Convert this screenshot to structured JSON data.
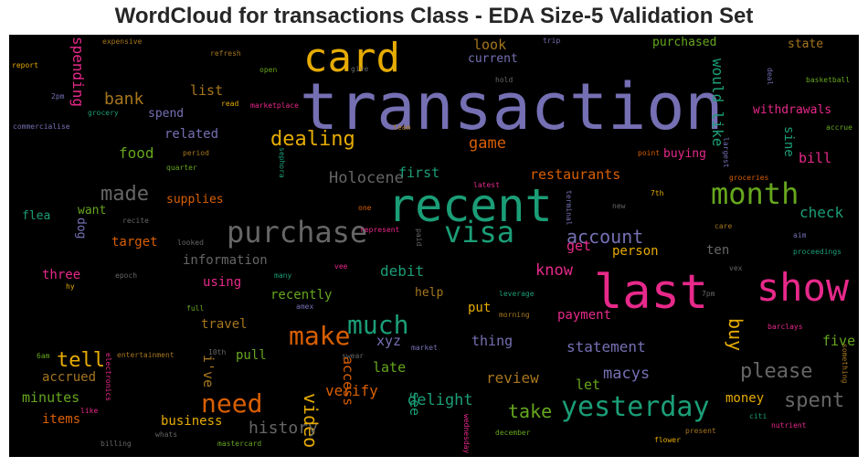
{
  "chart_data": {
    "type": "wordcloud",
    "title": "WordCloud for transactions Class - EDA Size-5 Validation Set",
    "background": "#000000",
    "words": [
      {
        "text": "transaction",
        "color": "#7570b3"
      },
      {
        "text": "card",
        "color": "#e6ab02"
      },
      {
        "text": "recent",
        "color": "#1b9e77"
      },
      {
        "text": "last",
        "color": "#e7298a"
      },
      {
        "text": "show",
        "color": "#e7298a"
      },
      {
        "text": "month",
        "color": "#66a61e"
      },
      {
        "text": "purchase",
        "color": "#666666"
      },
      {
        "text": "visa",
        "color": "#1b9e77"
      },
      {
        "text": "much",
        "color": "#1b9e77"
      },
      {
        "text": "make",
        "color": "#d95f02"
      },
      {
        "text": "need",
        "color": "#d95f02"
      },
      {
        "text": "yesterday",
        "color": "#1b9e77"
      },
      {
        "text": "dealing",
        "color": "#e6ab02"
      },
      {
        "text": "made",
        "color": "#666666"
      },
      {
        "text": "please",
        "color": "#666666"
      },
      {
        "text": "spent",
        "color": "#666666"
      },
      {
        "text": "account",
        "color": "#7570b3"
      },
      {
        "text": "Holocene",
        "color": "#666666"
      },
      {
        "text": "game",
        "color": "#d95f02"
      },
      {
        "text": "tell",
        "color": "#e6ab02"
      },
      {
        "text": "video",
        "color": "#e6ab02"
      },
      {
        "text": "take",
        "color": "#66a61e"
      },
      {
        "text": "history",
        "color": "#666666"
      },
      {
        "text": "bank",
        "color": "#a6761d"
      },
      {
        "text": "food",
        "color": "#66a61e"
      },
      {
        "text": "spending",
        "color": "#e7298a"
      },
      {
        "text": "would like",
        "color": "#1b9e77"
      },
      {
        "text": "buy",
        "color": "#e6ab02"
      },
      {
        "text": "check",
        "color": "#1b9e77"
      },
      {
        "text": "statement",
        "color": "#7570b3"
      },
      {
        "text": "delight",
        "color": "#1b9e77"
      },
      {
        "text": "know",
        "color": "#e7298a"
      },
      {
        "text": "macys",
        "color": "#7570b3"
      },
      {
        "text": "restaurants",
        "color": "#d95f02"
      },
      {
        "text": "debit",
        "color": "#1b9e77"
      },
      {
        "text": "verify",
        "color": "#d95f02"
      },
      {
        "text": "review",
        "color": "#a6761d"
      },
      {
        "text": "i've",
        "color": "#a6761d"
      },
      {
        "text": "look",
        "color": "#a6761d"
      },
      {
        "text": "list",
        "color": "#a6761d"
      },
      {
        "text": "related",
        "color": "#7570b3"
      },
      {
        "text": "first",
        "color": "#1b9e77"
      },
      {
        "text": "get",
        "color": "#e7298a"
      },
      {
        "text": "let",
        "color": "#66a61e"
      },
      {
        "text": "see",
        "color": "#1b9e77"
      },
      {
        "text": "xyz",
        "color": "#7570b3"
      },
      {
        "text": "late",
        "color": "#66a61e"
      },
      {
        "text": "access",
        "color": "#d95f02"
      },
      {
        "text": "thing",
        "color": "#7570b3"
      },
      {
        "text": "five",
        "color": "#66a61e"
      },
      {
        "text": "ten",
        "color": "#666666"
      },
      {
        "text": "bill",
        "color": "#e7298a"
      },
      {
        "text": "sine",
        "color": "#1b9e77"
      },
      {
        "text": "money",
        "color": "#e6ab02"
      },
      {
        "text": "minutes",
        "color": "#66a61e"
      },
      {
        "text": "accrued",
        "color": "#a6761d"
      },
      {
        "text": "items",
        "color": "#d95f02"
      },
      {
        "text": "business",
        "color": "#e6ab02"
      },
      {
        "text": "pull",
        "color": "#66a61e"
      },
      {
        "text": "travel",
        "color": "#a6761d"
      },
      {
        "text": "using",
        "color": "#e7298a"
      },
      {
        "text": "information",
        "color": "#666666"
      },
      {
        "text": "recently",
        "color": "#66a61e"
      },
      {
        "text": "help",
        "color": "#a6761d"
      },
      {
        "text": "put",
        "color": "#e6ab02"
      },
      {
        "text": "payment",
        "color": "#e7298a"
      },
      {
        "text": "person",
        "color": "#e6ab02"
      },
      {
        "text": "target",
        "color": "#d95f02"
      },
      {
        "text": "three",
        "color": "#e7298a"
      },
      {
        "text": "want",
        "color": "#66a61e"
      },
      {
        "text": "flea",
        "color": "#1b9e77"
      },
      {
        "text": "dog",
        "color": "#7570b3"
      },
      {
        "text": "supplies",
        "color": "#d95f02"
      },
      {
        "text": "spend",
        "color": "#7570b3"
      },
      {
        "text": "current",
        "color": "#7570b3"
      },
      {
        "text": "purchased",
        "color": "#66a61e"
      },
      {
        "text": "state",
        "color": "#a6761d"
      },
      {
        "text": "withdrawals",
        "color": "#e7298a"
      },
      {
        "text": "buying",
        "color": "#e7298a"
      },
      {
        "text": "expensive",
        "color": "#a6761d"
      },
      {
        "text": "refresh",
        "color": "#a6761d"
      },
      {
        "text": "report",
        "color": "#e6ab02"
      },
      {
        "text": "open",
        "color": "#66a61e"
      },
      {
        "text": "give",
        "color": "#666666"
      },
      {
        "text": "trip",
        "color": "#7570b3"
      },
      {
        "text": "hold",
        "color": "#666666"
      },
      {
        "text": "basketball",
        "color": "#66a61e"
      },
      {
        "text": "deal",
        "color": "#7570b3"
      },
      {
        "text": "2pm",
        "color": "#7570b3"
      },
      {
        "text": "grocery",
        "color": "#1b9e77"
      },
      {
        "text": "read",
        "color": "#e6ab02"
      },
      {
        "text": "marketplace",
        "color": "#e7298a"
      },
      {
        "text": "commercialise",
        "color": "#7570b3"
      },
      {
        "text": "team",
        "color": "#a6761d"
      },
      {
        "text": "accrue",
        "color": "#66a61e"
      },
      {
        "text": "period",
        "color": "#a6761d"
      },
      {
        "text": "quarter",
        "color": "#66a61e"
      },
      {
        "text": "sephora",
        "color": "#1b9e77"
      },
      {
        "text": "point",
        "color": "#d95f02"
      },
      {
        "text": "largest",
        "color": "#7570b3"
      },
      {
        "text": "groceries",
        "color": "#d95f02"
      },
      {
        "text": "latest",
        "color": "#e7298a"
      },
      {
        "text": "7th",
        "color": "#e6ab02"
      },
      {
        "text": "terminal",
        "color": "#7570b3"
      },
      {
        "text": "new",
        "color": "#666666"
      },
      {
        "text": "recite",
        "color": "#666666"
      },
      {
        "text": "one",
        "color": "#d95f02"
      },
      {
        "text": "care",
        "color": "#a6761d"
      },
      {
        "text": "aim",
        "color": "#7570b3"
      },
      {
        "text": "represent",
        "color": "#e7298a"
      },
      {
        "text": "looked",
        "color": "#666666"
      },
      {
        "text": "paid",
        "color": "#666666"
      },
      {
        "text": "proceedings",
        "color": "#1b9e77"
      },
      {
        "text": "vee",
        "color": "#e7298a"
      },
      {
        "text": "vex",
        "color": "#666666"
      },
      {
        "text": "epoch",
        "color": "#666666"
      },
      {
        "text": "many",
        "color": "#1b9e77"
      },
      {
        "text": "hy",
        "color": "#e6ab02"
      },
      {
        "text": "leverage",
        "color": "#1b9e77"
      },
      {
        "text": "7pm",
        "color": "#666666"
      },
      {
        "text": "amex",
        "color": "#7570b3"
      },
      {
        "text": "full",
        "color": "#66a61e"
      },
      {
        "text": "morning",
        "color": "#a6761d"
      },
      {
        "text": "barclays",
        "color": "#e7298a"
      },
      {
        "text": "6am",
        "color": "#66a61e"
      },
      {
        "text": "entertainment",
        "color": "#a6761d"
      },
      {
        "text": "10th",
        "color": "#666666"
      },
      {
        "text": "swear",
        "color": "#666666"
      },
      {
        "text": "market",
        "color": "#7570b3"
      },
      {
        "text": "electronics",
        "color": "#e7298a"
      },
      {
        "text": "something",
        "color": "#a6761d"
      },
      {
        "text": "like",
        "color": "#e7298a"
      },
      {
        "text": "whats",
        "color": "#666666"
      },
      {
        "text": "billing",
        "color": "#666666"
      },
      {
        "text": "mastercard",
        "color": "#66a61e"
      },
      {
        "text": "wednesday",
        "color": "#e7298a"
      },
      {
        "text": "december",
        "color": "#66a61e"
      },
      {
        "text": "present",
        "color": "#a6761d"
      },
      {
        "text": "citi",
        "color": "#1b9e77"
      },
      {
        "text": "nutrient",
        "color": "#e7298a"
      },
      {
        "text": "flower",
        "color": "#e6ab02"
      }
    ]
  }
}
